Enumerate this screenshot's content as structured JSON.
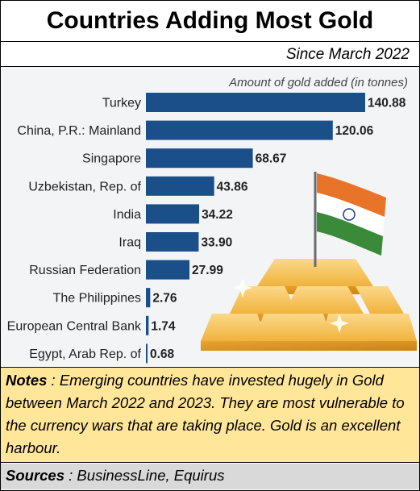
{
  "header": {
    "title": "Countries Adding Most Gold",
    "subtitle": "Since March 2022"
  },
  "chart_data": {
    "type": "bar",
    "orientation": "horizontal",
    "title": "Countries Adding Most Gold",
    "subtitle": "Since March 2022",
    "ylabel": "Amount of gold added (in tonnes)",
    "categories": [
      "Turkey",
      "China, P.R.: Mainland",
      "Singapore",
      "Uzbekistan, Rep. of",
      "India",
      "Iraq",
      "Russian Federation",
      "The Philippines",
      "European Central Bank",
      "Egypt, Arab Rep. of"
    ],
    "values": [
      140.88,
      120.06,
      68.67,
      43.86,
      34.22,
      33.9,
      27.99,
      2.76,
      1.74,
      0.68
    ],
    "value_labels": [
      "140.88",
      "120.06",
      "68.67",
      "43.86",
      "34.22",
      "33.90",
      "27.99",
      "2.76",
      "1.74",
      "0.68"
    ],
    "xlim": [
      0,
      140.88
    ],
    "grid": false,
    "bar_color": "#1b4f8a"
  },
  "notes": {
    "label": "Notes",
    "text": " : Emerging countries have invested hugely in Gold between March 2022 and 2023. They are most vulnerable to the currency wars that are taking place. Gold is an excellent harbour."
  },
  "sources": {
    "label": "Sources",
    "text": " : BusinessLine, Equirus"
  },
  "colors": {
    "notes_bg": "#ffe699",
    "sources_bg": "#d9d9d9",
    "gold": "#f0b23c",
    "flag_saffron": "#e8742a",
    "flag_green": "#3a8a3a"
  }
}
